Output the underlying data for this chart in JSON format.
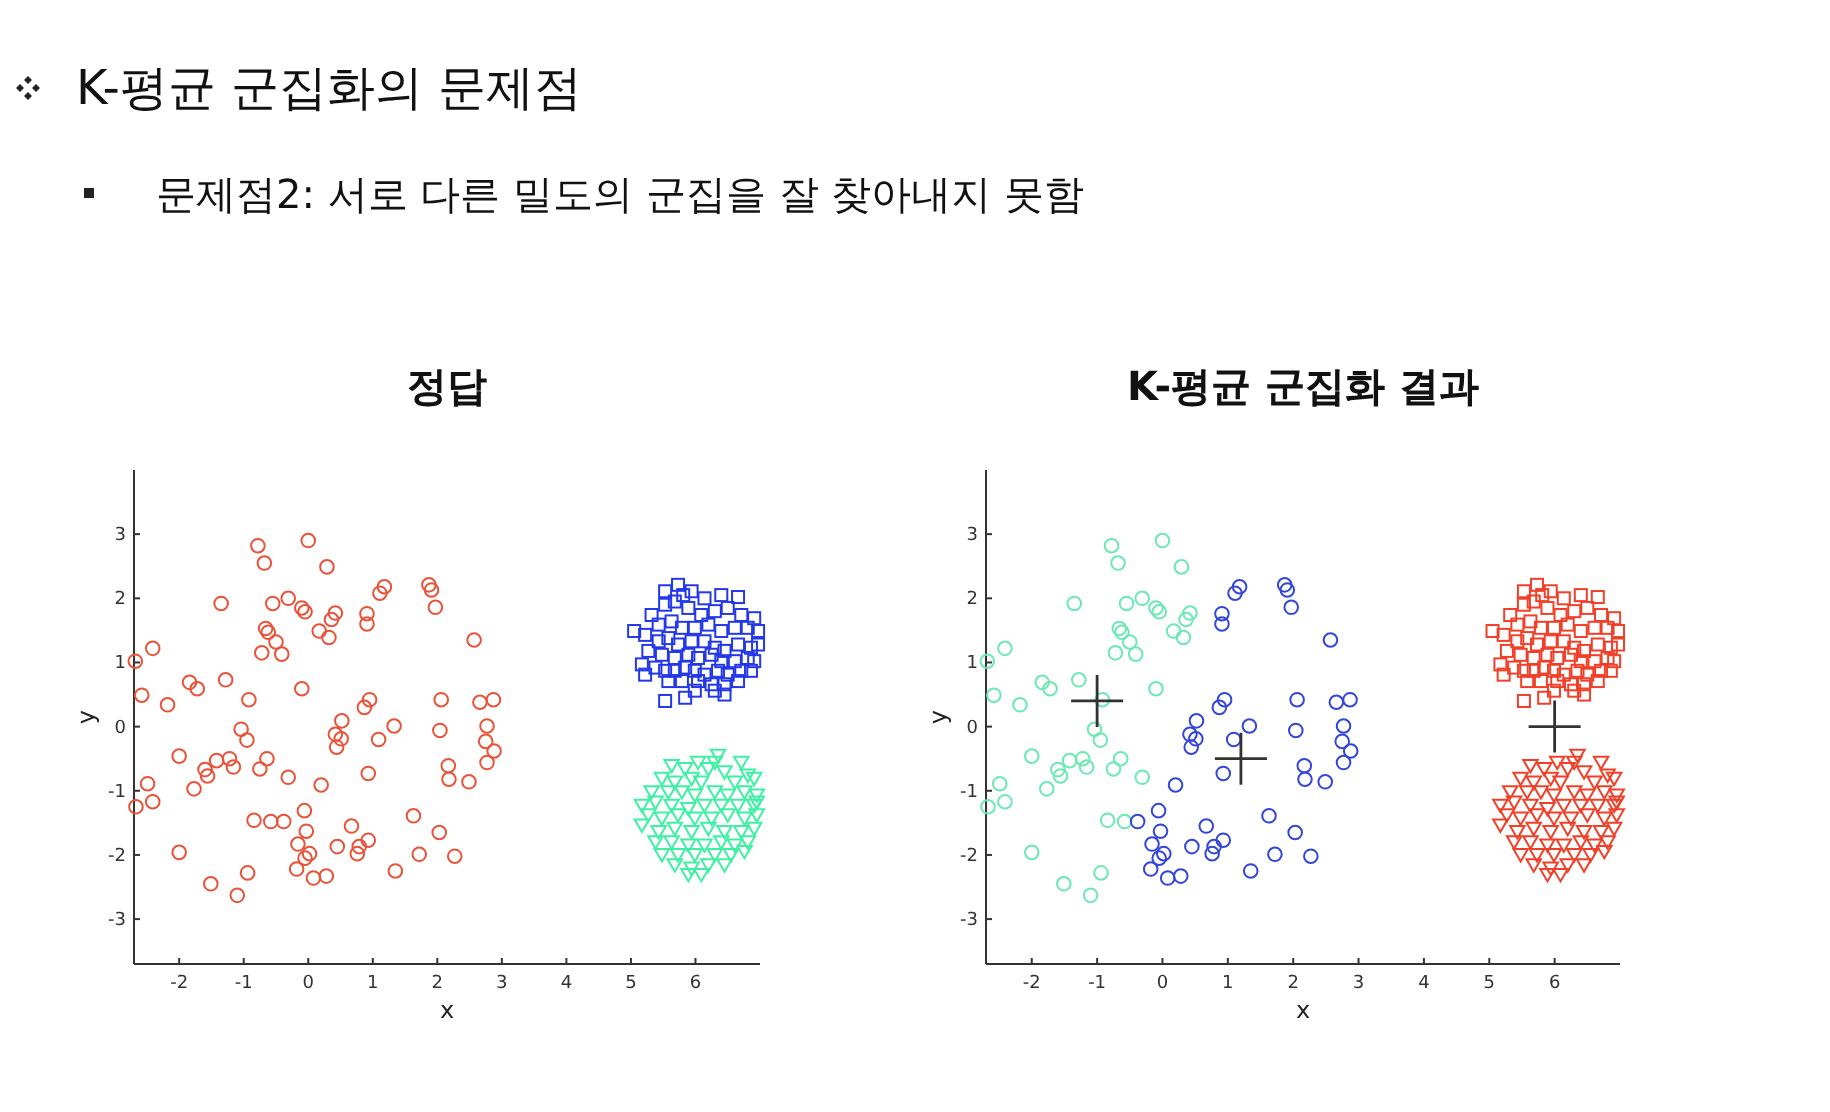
{
  "chart_data": [
    {
      "type": "scatter",
      "title": "정답",
      "xlabel": "x",
      "ylabel": "y",
      "annotations": [
        "K-평균 군집화의 문제점",
        "문제점2: 서로 다른 밀도의 군집을 잘 찾아내지 못함"
      ],
      "xlim": [
        -2.7,
        7
      ],
      "ylim": [
        -3.7,
        4
      ],
      "xticks": [
        -2,
        -1,
        0,
        1,
        2,
        3,
        4,
        5,
        6
      ],
      "yticks": [
        -3,
        -2,
        -1,
        0,
        1,
        2,
        3
      ],
      "grid": false,
      "series": [
        {
          "type": "scatter",
          "marker": "circle",
          "color": "#e8533a",
          "x": [
            -0.78,
            0.0,
            -0.68,
            0.29,
            -1.35,
            -0.55,
            -0.31,
            -0.1,
            -0.05,
            0.42,
            0.36,
            0.91,
            0.91,
            1.11,
            1.18,
            1.87,
            1.91,
            1.97,
            -0.66,
            -0.62,
            -0.5,
            -0.72,
            -0.41,
            0.17,
            0.32,
            2.57,
            -2.41,
            -2.68,
            -1.84,
            -1.72,
            -1.28,
            -2.58,
            -2.18,
            -0.92,
            -0.1,
            0.95,
            0.87,
            0.52,
            2.06,
            2.66,
            2.87,
            2.77,
            1.33,
            2.04,
            -1.04,
            -0.95,
            0.42,
            0.51,
            0.44,
            1.09,
            2.75,
            2.88,
            2.77,
            -2.0,
            -1.42,
            -1.22,
            -1.16,
            -1.6,
            -1.56,
            -0.64,
            -0.75,
            -0.31,
            0.93,
            2.17,
            2.18,
            2.49,
            0.2,
            -2.49,
            -1.77,
            -2.67,
            -2.41,
            -0.84,
            -0.58,
            -0.38,
            -0.06,
            -0.03,
            0.67,
            1.63,
            -0.16,
            0.02,
            -0.05,
            0.45,
            0.79,
            0.76,
            0.93,
            1.72,
            2.03,
            2.27,
            -2.0,
            -0.94,
            -0.18,
            0.08,
            0.28,
            1.35,
            -1.51,
            -1.1
          ],
          "values": [
            2.82,
            2.9,
            2.55,
            2.49,
            1.92,
            1.92,
            2.0,
            1.85,
            1.79,
            1.77,
            1.67,
            1.76,
            1.6,
            2.08,
            2.18,
            2.21,
            2.13,
            1.86,
            1.53,
            1.47,
            1.32,
            1.15,
            1.13,
            1.49,
            1.39,
            1.35,
            1.22,
            1.02,
            0.69,
            0.59,
            0.73,
            0.49,
            0.34,
            0.42,
            0.59,
            0.42,
            0.3,
            0.09,
            0.42,
            0.38,
            0.42,
            0.01,
            0.01,
            -0.06,
            -0.04,
            -0.21,
            -0.12,
            -0.19,
            -0.32,
            -0.2,
            -0.23,
            -0.38,
            -0.56,
            -0.46,
            -0.53,
            -0.5,
            -0.63,
            -0.67,
            -0.77,
            -0.5,
            -0.66,
            -0.79,
            -0.73,
            -0.61,
            -0.82,
            -0.86,
            -0.91,
            -0.89,
            -0.97,
            -1.25,
            -1.17,
            -1.46,
            -1.48,
            -1.48,
            -1.31,
            -1.63,
            -1.55,
            -1.39,
            -1.83,
            -1.98,
            -2.05,
            -1.87,
            -1.87,
            -1.98,
            -1.77,
            -1.99,
            -1.65,
            -2.02,
            -1.96,
            -2.28,
            -2.22,
            -2.36,
            -2.33,
            -2.25,
            -2.45,
            -2.63
          ]
        },
        {
          "type": "scatter",
          "marker": "square",
          "color": "#2438e8",
          "x": [
            5.53,
            5.73,
            5.81,
            5.94,
            6.14,
            6.4,
            6.66,
            5.53,
            5.68,
            5.89,
            6.09,
            6.3,
            6.5,
            6.71,
            6.91,
            5.32,
            5.43,
            5.63,
            5.79,
            5.99,
            6.2,
            6.4,
            6.61,
            6.81,
            6.97,
            5.05,
            5.22,
            5.43,
            5.58,
            5.73,
            5.94,
            6.14,
            6.3,
            6.45,
            6.66,
            6.86,
            6.97,
            5.27,
            5.48,
            5.68,
            5.89,
            6.04,
            6.25,
            6.4,
            6.61,
            6.81,
            6.91,
            5.17,
            5.38,
            5.53,
            5.68,
            5.84,
            5.99,
            6.14,
            6.35,
            6.5,
            6.71,
            6.86,
            5.22,
            5.58,
            5.79,
            6.04,
            6.25,
            6.45,
            6.66,
            6.3,
            5.99,
            5.53,
            5.84,
            6.45
          ],
          "values": [
            2.11,
            2.21,
            2.05,
            2.11,
            2.0,
            2.05,
            2.02,
            1.9,
            1.95,
            1.85,
            1.74,
            1.8,
            1.85,
            1.74,
            1.69,
            1.74,
            1.59,
            1.64,
            1.54,
            1.54,
            1.59,
            1.49,
            1.54,
            1.54,
            1.49,
            1.49,
            1.43,
            1.33,
            1.38,
            1.28,
            1.33,
            1.33,
            1.23,
            1.18,
            1.28,
            1.23,
            1.28,
            1.18,
            1.12,
            1.07,
            1.12,
            1.07,
            1.12,
            1.02,
            1.02,
            1.07,
            1.02,
            0.97,
            0.92,
            0.87,
            0.87,
            0.92,
            0.87,
            0.81,
            0.87,
            0.81,
            0.87,
            0.87,
            0.81,
            0.71,
            0.71,
            0.71,
            0.66,
            0.66,
            0.71,
            0.56,
            0.56,
            0.4,
            0.45,
            0.5
          ]
        },
        {
          "type": "scatter",
          "marker": "triangle",
          "color": "#3ff0a4",
          "x": [
            6.35,
            6.04,
            6.3,
            6.71,
            5.63,
            5.84,
            6.2,
            6.45,
            6.81,
            5.48,
            5.68,
            5.94,
            6.09,
            6.61,
            6.91,
            5.32,
            5.58,
            5.79,
            5.99,
            6.3,
            6.5,
            6.76,
            6.95,
            5.17,
            5.38,
            5.63,
            5.89,
            6.14,
            6.4,
            6.66,
            6.91,
            6.95,
            5.27,
            5.48,
            5.73,
            5.99,
            6.25,
            6.5,
            6.76,
            6.95,
            5.17,
            5.43,
            5.68,
            5.94,
            6.2,
            6.45,
            6.71,
            6.91,
            5.38,
            5.63,
            5.89,
            6.14,
            6.4,
            6.61,
            6.81,
            5.48,
            5.73,
            5.99,
            6.3,
            6.55,
            6.76,
            5.68,
            5.94,
            6.2,
            6.45,
            5.89,
            6.09
          ],
          "values": [
            -0.44,
            -0.55,
            -0.55,
            -0.55,
            -0.6,
            -0.65,
            -0.65,
            -0.7,
            -0.75,
            -0.8,
            -0.86,
            -0.8,
            -0.86,
            -0.86,
            -0.8,
            -1.01,
            -1.01,
            -1.01,
            -1.06,
            -1.01,
            -1.06,
            -1.01,
            -1.06,
            -1.22,
            -1.17,
            -1.22,
            -1.27,
            -1.22,
            -1.22,
            -1.22,
            -1.22,
            -1.17,
            -1.37,
            -1.42,
            -1.37,
            -1.42,
            -1.42,
            -1.37,
            -1.42,
            -1.37,
            -1.53,
            -1.63,
            -1.58,
            -1.63,
            -1.58,
            -1.63,
            -1.63,
            -1.58,
            -1.79,
            -1.79,
            -1.84,
            -1.84,
            -1.79,
            -1.84,
            -1.79,
            -1.99,
            -1.99,
            -1.99,
            -1.99,
            -1.99,
            -1.94,
            -2.15,
            -2.2,
            -2.15,
            -2.15,
            -2.3,
            -2.3
          ]
        }
      ]
    },
    {
      "type": "scatter",
      "title": "K-평균 군집화 결과",
      "xlabel": "x",
      "ylabel": "y",
      "xlim": [
        -2.7,
        7
      ],
      "ylim": [
        -3.7,
        4
      ],
      "xticks": [
        -2,
        -1,
        0,
        1,
        2,
        3,
        4,
        5,
        6
      ],
      "yticks": [
        -3,
        -2,
        -1,
        0,
        1,
        2,
        3
      ],
      "grid": false,
      "series": [
        {
          "type": "scatter",
          "marker": "circle",
          "color": "#6de8b4",
          "x": [
            -0.78,
            0.0,
            -0.68,
            0.29,
            -1.35,
            -0.55,
            -0.31,
            -0.1,
            -0.05,
            0.42,
            0.36,
            -0.66,
            -0.62,
            -0.5,
            -0.72,
            -0.41,
            0.17,
            0.32,
            -2.41,
            -2.68,
            -1.84,
            -1.72,
            -1.28,
            -2.58,
            -2.18,
            -0.92,
            -0.1,
            -1.04,
            -0.95,
            -2.0,
            -1.42,
            -1.22,
            -1.16,
            -1.6,
            -1.56,
            -0.64,
            -0.75,
            -0.31,
            -2.49,
            -1.77,
            -2.67,
            -2.41,
            -0.84,
            -0.58,
            -2.0,
            -0.94,
            -1.51,
            -1.1
          ],
          "values": [
            2.82,
            2.9,
            2.55,
            2.49,
            1.92,
            1.92,
            2.0,
            1.85,
            1.79,
            1.77,
            1.67,
            1.53,
            1.47,
            1.32,
            1.15,
            1.13,
            1.49,
            1.39,
            1.22,
            1.02,
            0.69,
            0.59,
            0.73,
            0.49,
            0.34,
            0.42,
            0.59,
            -0.04,
            -0.21,
            -0.46,
            -0.53,
            -0.5,
            -0.63,
            -0.67,
            -0.77,
            -0.5,
            -0.66,
            -0.79,
            -0.89,
            -0.97,
            -1.25,
            -1.17,
            -1.46,
            -1.48,
            -1.96,
            -2.28,
            -2.45,
            -2.63
          ]
        },
        {
          "type": "scatter",
          "marker": "circle",
          "color": "#3346d8",
          "x": [
            0.91,
            0.91,
            1.11,
            1.18,
            1.87,
            1.91,
            1.97,
            2.57,
            0.95,
            0.87,
            0.52,
            2.06,
            2.66,
            2.87,
            2.77,
            1.33,
            2.04,
            0.42,
            0.51,
            0.44,
            1.09,
            2.75,
            2.88,
            2.77,
            0.93,
            2.17,
            2.18,
            2.49,
            0.2,
            -0.38,
            -0.06,
            -0.03,
            0.67,
            1.63,
            -0.16,
            0.02,
            -0.05,
            0.45,
            0.79,
            0.76,
            0.93,
            1.72,
            2.03,
            2.27,
            -0.18,
            0.08,
            0.28,
            1.35
          ],
          "values": [
            1.76,
            1.6,
            2.08,
            2.18,
            2.21,
            2.13,
            1.86,
            1.35,
            0.42,
            0.3,
            0.09,
            0.42,
            0.38,
            0.42,
            0.01,
            0.01,
            -0.06,
            -0.12,
            -0.19,
            -0.32,
            -0.2,
            -0.23,
            -0.38,
            -0.56,
            -0.73,
            -0.61,
            -0.82,
            -0.86,
            -0.91,
            -1.48,
            -1.31,
            -1.63,
            -1.55,
            -1.39,
            -1.83,
            -1.98,
            -2.05,
            -1.87,
            -1.87,
            -1.98,
            -1.77,
            -1.99,
            -1.65,
            -2.02,
            -2.22,
            -2.36,
            -2.33,
            -2.25
          ]
        },
        {
          "type": "scatter",
          "marker": "square",
          "color": "#f0402a",
          "x": [
            5.53,
            5.73,
            5.81,
            5.94,
            6.14,
            6.4,
            6.66,
            5.53,
            5.68,
            5.89,
            6.09,
            6.3,
            6.5,
            6.71,
            6.91,
            5.32,
            5.43,
            5.63,
            5.79,
            5.99,
            6.2,
            6.4,
            6.61,
            6.81,
            6.97,
            5.05,
            5.22,
            5.43,
            5.58,
            5.73,
            5.94,
            6.14,
            6.3,
            6.45,
            6.66,
            6.86,
            6.97,
            5.27,
            5.48,
            5.68,
            5.89,
            6.04,
            6.25,
            6.4,
            6.61,
            6.81,
            6.91,
            5.17,
            5.38,
            5.53,
            5.68,
            5.84,
            5.99,
            6.14,
            6.35,
            6.5,
            6.71,
            6.86,
            5.22,
            5.58,
            5.79,
            6.04,
            6.25,
            6.45,
            6.66,
            6.3,
            5.99,
            5.53,
            5.84,
            6.45
          ],
          "values": [
            2.11,
            2.21,
            2.05,
            2.11,
            2.0,
            2.05,
            2.02,
            1.9,
            1.95,
            1.85,
            1.74,
            1.8,
            1.85,
            1.74,
            1.69,
            1.74,
            1.59,
            1.64,
            1.54,
            1.54,
            1.59,
            1.49,
            1.54,
            1.54,
            1.49,
            1.49,
            1.43,
            1.33,
            1.38,
            1.28,
            1.33,
            1.33,
            1.23,
            1.18,
            1.28,
            1.23,
            1.28,
            1.18,
            1.12,
            1.07,
            1.12,
            1.07,
            1.12,
            1.02,
            1.02,
            1.07,
            1.02,
            0.97,
            0.92,
            0.87,
            0.87,
            0.92,
            0.87,
            0.81,
            0.87,
            0.81,
            0.87,
            0.87,
            0.81,
            0.71,
            0.71,
            0.71,
            0.66,
            0.66,
            0.71,
            0.56,
            0.56,
            0.4,
            0.45,
            0.5
          ]
        },
        {
          "type": "scatter",
          "marker": "triangle",
          "color": "#f0402a",
          "x": [
            6.35,
            6.04,
            6.3,
            6.71,
            5.63,
            5.84,
            6.2,
            6.45,
            6.81,
            5.48,
            5.68,
            5.94,
            6.09,
            6.61,
            6.91,
            5.32,
            5.58,
            5.79,
            5.99,
            6.3,
            6.5,
            6.76,
            6.95,
            5.17,
            5.38,
            5.63,
            5.89,
            6.14,
            6.4,
            6.66,
            6.91,
            6.95,
            5.27,
            5.48,
            5.73,
            5.99,
            6.25,
            6.5,
            6.76,
            6.95,
            5.17,
            5.43,
            5.68,
            5.94,
            6.2,
            6.45,
            6.71,
            6.91,
            5.38,
            5.63,
            5.89,
            6.14,
            6.4,
            6.61,
            6.81,
            5.48,
            5.73,
            5.99,
            6.3,
            6.55,
            6.76,
            5.68,
            5.94,
            6.2,
            6.45,
            5.89,
            6.09
          ],
          "values": [
            -0.44,
            -0.55,
            -0.55,
            -0.55,
            -0.6,
            -0.65,
            -0.65,
            -0.7,
            -0.75,
            -0.8,
            -0.86,
            -0.8,
            -0.86,
            -0.86,
            -0.8,
            -1.01,
            -1.01,
            -1.01,
            -1.06,
            -1.01,
            -1.06,
            -1.01,
            -1.06,
            -1.22,
            -1.17,
            -1.22,
            -1.27,
            -1.22,
            -1.22,
            -1.22,
            -1.22,
            -1.17,
            -1.37,
            -1.42,
            -1.37,
            -1.42,
            -1.42,
            -1.37,
            -1.42,
            -1.37,
            -1.53,
            -1.63,
            -1.58,
            -1.63,
            -1.58,
            -1.63,
            -1.63,
            -1.58,
            -1.79,
            -1.79,
            -1.84,
            -1.84,
            -1.79,
            -1.84,
            -1.79,
            -1.99,
            -1.99,
            -1.99,
            -1.99,
            -1.99,
            -1.94,
            -2.15,
            -2.2,
            -2.15,
            -2.15,
            -2.3,
            -2.3
          ]
        },
        {
          "type": "scatter",
          "marker": "cross",
          "color": "#333333",
          "x": [
            -1.0,
            1.2,
            6.0
          ],
          "values": [
            0.4,
            -0.5,
            0.0
          ]
        }
      ]
    }
  ]
}
